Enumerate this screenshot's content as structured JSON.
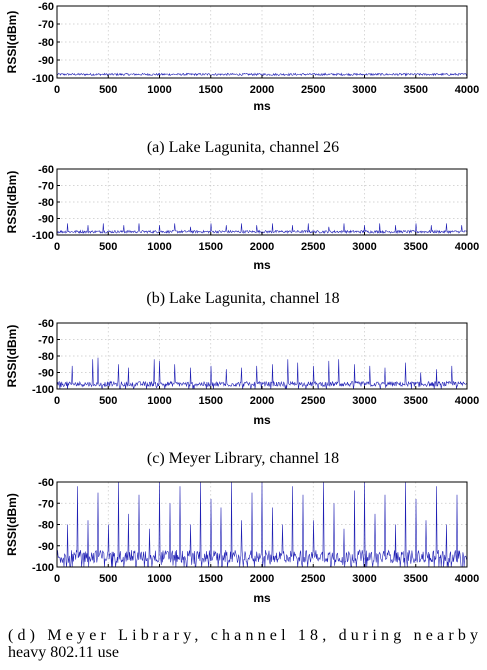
{
  "chart_data": [
    {
      "type": "line",
      "caption": "(a) Lake Lagunita, channel 26",
      "xlabel": "ms",
      "ylabel": "RSSI(dBm)",
      "xlim": [
        0,
        4000
      ],
      "ylim": [
        -100,
        -60
      ],
      "xticks": [
        0,
        500,
        1000,
        1500,
        2000,
        2500,
        3000,
        3500,
        4000
      ],
      "yticks": [
        -60,
        -70,
        -80,
        -90,
        -100
      ],
      "grid": true,
      "series": [
        {
          "baseline": -98,
          "noise": 0.6,
          "spikes": []
        }
      ]
    },
    {
      "type": "line",
      "caption": "(b) Lake Lagunita, channel 18",
      "xlabel": "ms",
      "ylabel": "RSSI(dBm)",
      "xlim": [
        0,
        4000
      ],
      "ylim": [
        -100,
        -60
      ],
      "xticks": [
        0,
        500,
        1000,
        1500,
        2000,
        2500,
        3000,
        3500,
        4000
      ],
      "yticks": [
        -60,
        -70,
        -80,
        -90,
        -100
      ],
      "grid": true,
      "series": [
        {
          "baseline": -98,
          "noise": 0.8,
          "spikes": [
            [
              100,
              -93
            ],
            [
              300,
              -94
            ],
            [
              450,
              -93
            ],
            [
              650,
              -94
            ],
            [
              800,
              -93
            ],
            [
              1000,
              -94
            ],
            [
              1150,
              -93
            ],
            [
              1300,
              -95
            ],
            [
              1500,
              -93
            ],
            [
              1650,
              -94
            ],
            [
              1800,
              -93
            ],
            [
              1950,
              -94
            ],
            [
              2100,
              -93
            ],
            [
              2300,
              -94
            ],
            [
              2450,
              -93
            ],
            [
              2650,
              -95
            ],
            [
              2800,
              -93
            ],
            [
              3000,
              -94
            ],
            [
              3150,
              -93
            ],
            [
              3300,
              -94
            ],
            [
              3500,
              -93
            ],
            [
              3650,
              -94
            ],
            [
              3800,
              -93
            ],
            [
              3950,
              -94
            ]
          ]
        }
      ]
    },
    {
      "type": "line",
      "caption": "(c) Meyer Library, channel 18",
      "xlabel": "ms",
      "ylabel": "RSSI(dBm)",
      "xlim": [
        0,
        4000
      ],
      "ylim": [
        -100,
        -60
      ],
      "xticks": [
        0,
        500,
        1000,
        1500,
        2000,
        2500,
        3000,
        3500,
        4000
      ],
      "yticks": [
        -60,
        -70,
        -80,
        -90,
        -100
      ],
      "grid": true,
      "series": [
        {
          "baseline": -97,
          "noise": 1.5,
          "spikes": [
            [
              150,
              -86
            ],
            [
              350,
              -82
            ],
            [
              400,
              -81
            ],
            [
              600,
              -85
            ],
            [
              700,
              -87
            ],
            [
              950,
              -82
            ],
            [
              1000,
              -83
            ],
            [
              1150,
              -85
            ],
            [
              1300,
              -87
            ],
            [
              1500,
              -86
            ],
            [
              1650,
              -88
            ],
            [
              1800,
              -87
            ],
            [
              1950,
              -86
            ],
            [
              2100,
              -85
            ],
            [
              2250,
              -82
            ],
            [
              2350,
              -84
            ],
            [
              2500,
              -86
            ],
            [
              2650,
              -83
            ],
            [
              2750,
              -82
            ],
            [
              2900,
              -85
            ],
            [
              3050,
              -86
            ],
            [
              3200,
              -87
            ],
            [
              3400,
              -84
            ],
            [
              3550,
              -90
            ],
            [
              3700,
              -88
            ],
            [
              3850,
              -86
            ]
          ]
        }
      ]
    },
    {
      "type": "line",
      "caption": "(d) Meyer Library, channel 18, during nearby heavy 802.11 use",
      "xlabel": "ms",
      "ylabel": "RSSI(dBm)",
      "xlim": [
        0,
        4000
      ],
      "ylim": [
        -100,
        -60
      ],
      "xticks": [
        0,
        500,
        1000,
        1500,
        2000,
        2500,
        3000,
        3500,
        4000
      ],
      "yticks": [
        -60,
        -70,
        -80,
        -90,
        -100
      ],
      "grid": true,
      "series": [
        {
          "baseline": -95,
          "noise": 3,
          "spikes": [
            [
              100,
              -80
            ],
            [
              200,
              -62
            ],
            [
              300,
              -78
            ],
            [
              400,
              -65
            ],
            [
              500,
              -80
            ],
            [
              600,
              -60
            ],
            [
              700,
              -75
            ],
            [
              800,
              -66
            ],
            [
              900,
              -82
            ],
            [
              1000,
              -60
            ],
            [
              1100,
              -70
            ],
            [
              1200,
              -62
            ],
            [
              1300,
              -80
            ],
            [
              1400,
              -60
            ],
            [
              1500,
              -68
            ],
            [
              1600,
              -72
            ],
            [
              1700,
              -60
            ],
            [
              1800,
              -78
            ],
            [
              1900,
              -65
            ],
            [
              2000,
              -60
            ],
            [
              2100,
              -72
            ],
            [
              2200,
              -80
            ],
            [
              2300,
              -62
            ],
            [
              2400,
              -66
            ],
            [
              2500,
              -78
            ],
            [
              2600,
              -60
            ],
            [
              2700,
              -70
            ],
            [
              2800,
              -82
            ],
            [
              2900,
              -64
            ],
            [
              3000,
              -60
            ],
            [
              3100,
              -75
            ],
            [
              3200,
              -66
            ],
            [
              3300,
              -80
            ],
            [
              3400,
              -60
            ],
            [
              3500,
              -68
            ],
            [
              3600,
              -78
            ],
            [
              3700,
              -62
            ],
            [
              3800,
              -80
            ],
            [
              3900,
              -66
            ]
          ]
        }
      ]
    }
  ]
}
